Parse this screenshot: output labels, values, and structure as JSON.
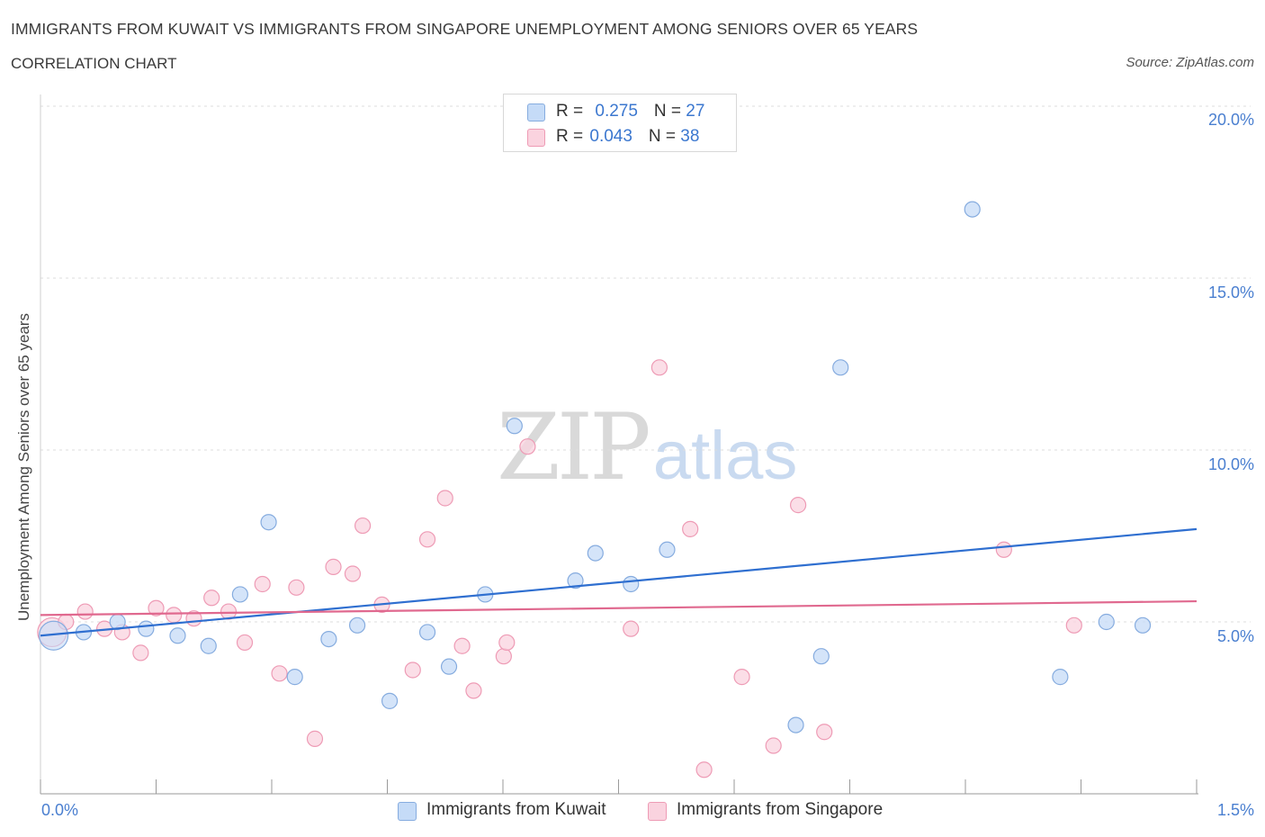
{
  "header": {
    "title": "IMMIGRANTS FROM KUWAIT VS IMMIGRANTS FROM SINGAPORE UNEMPLOYMENT AMONG SENIORS OVER 65 YEARS",
    "subtitle": "CORRELATION CHART",
    "source": "Source: ZipAtlas.com"
  },
  "watermark": {
    "zip": "ZIP",
    "atlas": "atlas"
  },
  "legend": {
    "rows": [
      {
        "r_label": "R = ",
        "r_value": "0.275",
        "n_label": "N = ",
        "n_value": "27",
        "color": "#b9d2f5"
      },
      {
        "r_label": "R = ",
        "r_value": "0.043",
        "n_label": "N = ",
        "n_value": "38",
        "color": "#f8c6d6"
      }
    ]
  },
  "bottom_legend": [
    {
      "label": "Immigrants from Kuwait",
      "color": "#b9d2f5"
    },
    {
      "label": "Immigrants from Singapore",
      "color": "#f8c6d6"
    }
  ],
  "colors": {
    "kuwait_fill": "#c5dbf7",
    "kuwait_stroke": "#86acdf",
    "kuwait_line": "#2f6fd0",
    "singapore_fill": "#fad3df",
    "singapore_stroke": "#ee9bb5",
    "singapore_line": "#e0698f",
    "grid": "#dddddd",
    "axis_label": "#4a7fd0"
  },
  "chart_data": {
    "type": "scatter",
    "title": "IMMIGRANTS FROM KUWAIT VS IMMIGRANTS FROM SINGAPORE UNEMPLOYMENT AMONG SENIORS OVER 65 YEARS",
    "xlabel": "",
    "ylabel": "Unemployment Among Seniors over 65 years",
    "xlim": [
      0,
      1.5
    ],
    "ylim": [
      0,
      20
    ],
    "x_tick_labels": [
      "0.0%",
      "1.5%"
    ],
    "y_ticks": [
      5,
      10,
      15,
      20
    ],
    "y_tick_labels": [
      "5.0%",
      "10.0%",
      "15.0%",
      "20.0%"
    ],
    "grid": true,
    "legend_position": "top-center",
    "series": [
      {
        "name": "Immigrants from Kuwait",
        "R": 0.275,
        "N": 27,
        "trend": {
          "x": [
            0,
            1.5
          ],
          "y": [
            4.6,
            7.7
          ]
        },
        "points": [
          {
            "x": 0.017,
            "y": 4.6,
            "big": true
          },
          {
            "x": 0.056,
            "y": 4.7
          },
          {
            "x": 0.1,
            "y": 5.0
          },
          {
            "x": 0.137,
            "y": 4.8
          },
          {
            "x": 0.178,
            "y": 4.6
          },
          {
            "x": 0.218,
            "y": 4.3
          },
          {
            "x": 0.259,
            "y": 5.8
          },
          {
            "x": 0.296,
            "y": 7.9
          },
          {
            "x": 0.33,
            "y": 3.4
          },
          {
            "x": 0.374,
            "y": 4.5
          },
          {
            "x": 0.411,
            "y": 4.9
          },
          {
            "x": 0.453,
            "y": 2.7
          },
          {
            "x": 0.502,
            "y": 4.7
          },
          {
            "x": 0.53,
            "y": 3.7
          },
          {
            "x": 0.577,
            "y": 5.8
          },
          {
            "x": 0.615,
            "y": 10.7
          },
          {
            "x": 0.694,
            "y": 6.2
          },
          {
            "x": 0.72,
            "y": 7.0
          },
          {
            "x": 0.766,
            "y": 6.1
          },
          {
            "x": 0.813,
            "y": 7.1
          },
          {
            "x": 0.98,
            "y": 2.0
          },
          {
            "x": 1.013,
            "y": 4.0
          },
          {
            "x": 1.038,
            "y": 12.4
          },
          {
            "x": 1.209,
            "y": 17.0
          },
          {
            "x": 1.323,
            "y": 3.4
          },
          {
            "x": 1.383,
            "y": 5.0
          },
          {
            "x": 1.43,
            "y": 4.9
          }
        ]
      },
      {
        "name": "Immigrants from Singapore",
        "R": 0.043,
        "N": 38,
        "trend": {
          "x": [
            0,
            1.5
          ],
          "y": [
            5.2,
            5.6
          ]
        },
        "points": [
          {
            "x": 0.015,
            "y": 4.7,
            "big": true
          },
          {
            "x": 0.033,
            "y": 5.0
          },
          {
            "x": 0.058,
            "y": 5.3
          },
          {
            "x": 0.083,
            "y": 4.8
          },
          {
            "x": 0.106,
            "y": 4.7
          },
          {
            "x": 0.13,
            "y": 4.1
          },
          {
            "x": 0.15,
            "y": 5.4
          },
          {
            "x": 0.173,
            "y": 5.2
          },
          {
            "x": 0.199,
            "y": 5.1
          },
          {
            "x": 0.222,
            "y": 5.7
          },
          {
            "x": 0.244,
            "y": 5.3
          },
          {
            "x": 0.265,
            "y": 4.4
          },
          {
            "x": 0.288,
            "y": 6.1
          },
          {
            "x": 0.31,
            "y": 3.5
          },
          {
            "x": 0.332,
            "y": 6.0
          },
          {
            "x": 0.356,
            "y": 1.6
          },
          {
            "x": 0.38,
            "y": 6.6
          },
          {
            "x": 0.405,
            "y": 6.4
          },
          {
            "x": 0.418,
            "y": 7.8
          },
          {
            "x": 0.443,
            "y": 5.5
          },
          {
            "x": 0.483,
            "y": 3.6
          },
          {
            "x": 0.502,
            "y": 7.4
          },
          {
            "x": 0.525,
            "y": 8.6
          },
          {
            "x": 0.547,
            "y": 4.3
          },
          {
            "x": 0.562,
            "y": 3.0
          },
          {
            "x": 0.601,
            "y": 4.0
          },
          {
            "x": 0.605,
            "y": 4.4
          },
          {
            "x": 0.632,
            "y": 10.1
          },
          {
            "x": 0.766,
            "y": 4.8
          },
          {
            "x": 0.803,
            "y": 12.4
          },
          {
            "x": 0.843,
            "y": 7.7
          },
          {
            "x": 0.861,
            "y": 0.7
          },
          {
            "x": 0.91,
            "y": 3.4
          },
          {
            "x": 0.951,
            "y": 1.4
          },
          {
            "x": 0.983,
            "y": 8.4
          },
          {
            "x": 1.017,
            "y": 1.8
          },
          {
            "x": 1.25,
            "y": 7.1
          },
          {
            "x": 1.341,
            "y": 4.9
          }
        ]
      }
    ]
  }
}
